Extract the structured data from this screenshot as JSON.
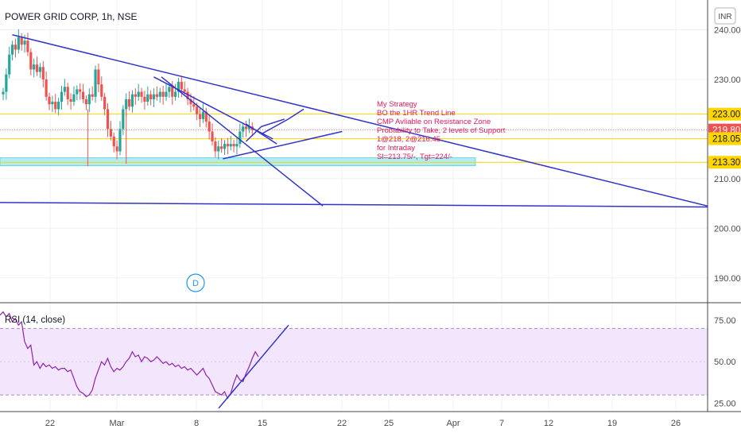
{
  "header": {
    "title": "POWER GRID CORP, 1h, NSE",
    "currency_badge": "INR"
  },
  "chart_data": [
    {
      "type": "candlestick",
      "title": "POWER GRID CORP, 1h, NSE",
      "y_ticks": [
        "240.00",
        "230.00",
        "220.00",
        "210.00",
        "200.00",
        "190.00"
      ],
      "x_ticks": [
        "22",
        "Mar",
        "8",
        "15",
        "22",
        "25",
        "Apr",
        "7",
        "12",
        "19",
        "26"
      ],
      "ylim": [
        185,
        246
      ],
      "price_tags": [
        {
          "label": "223.00",
          "value": 223.0,
          "style": "yellow"
        },
        {
          "label": "219.80",
          "value": 219.8,
          "style": "red"
        },
        {
          "label": "218.05",
          "value": 218.05,
          "style": "yellow"
        },
        {
          "label": "213.30",
          "value": 213.3,
          "style": "yellow"
        }
      ],
      "horizontal_levels": [
        223.0,
        218.05,
        213.3
      ],
      "support_zone": [
        212.6,
        214.2
      ],
      "last_price": 219.8,
      "series": [
        {
          "x": 0.0,
          "v": 227.5
        },
        {
          "x": 0.4,
          "v": 231.0
        },
        {
          "x": 0.8,
          "v": 235.0
        },
        {
          "x": 1.2,
          "v": 237.0
        },
        {
          "x": 1.6,
          "v": 236.0
        },
        {
          "x": 2.0,
          "v": 238.5
        },
        {
          "x": 2.4,
          "v": 237.0
        },
        {
          "x": 2.8,
          "v": 237.8
        },
        {
          "x": 3.2,
          "v": 235.5
        },
        {
          "x": 3.6,
          "v": 232.0
        },
        {
          "x": 4.0,
          "v": 233.0
        },
        {
          "x": 4.4,
          "v": 231.5
        },
        {
          "x": 4.8,
          "v": 232.5
        },
        {
          "x": 5.2,
          "v": 230.0
        },
        {
          "x": 5.6,
          "v": 226.5
        },
        {
          "x": 6.0,
          "v": 225.0
        },
        {
          "x": 6.4,
          "v": 225.5
        },
        {
          "x": 6.8,
          "v": 224.0
        },
        {
          "x": 7.2,
          "v": 225.5
        },
        {
          "x": 7.6,
          "v": 227.5
        },
        {
          "x": 8.0,
          "v": 228.5
        },
        {
          "x": 8.4,
          "v": 226.0
        },
        {
          "x": 8.8,
          "v": 225.5
        },
        {
          "x": 9.2,
          "v": 227.0
        },
        {
          "x": 9.6,
          "v": 228.0
        },
        {
          "x": 10.0,
          "v": 227.5
        },
        {
          "x": 10.4,
          "v": 226.0
        },
        {
          "x": 10.8,
          "v": 225.0
        },
        {
          "x": 11.2,
          "v": 227.0
        },
        {
          "x": 11.6,
          "v": 226.5
        },
        {
          "x": 12.0,
          "v": 232.0
        },
        {
          "x": 12.4,
          "v": 229.0
        },
        {
          "x": 12.8,
          "v": 226.5
        },
        {
          "x": 13.2,
          "v": 224.0
        },
        {
          "x": 13.6,
          "v": 220.0
        },
        {
          "x": 14.0,
          "v": 218.5
        },
        {
          "x": 14.4,
          "v": 216.5
        },
        {
          "x": 14.8,
          "v": 215.5
        },
        {
          "x": 15.2,
          "v": 220.0
        },
        {
          "x": 15.6,
          "v": 224.0
        },
        {
          "x": 16.0,
          "v": 226.0
        },
        {
          "x": 16.4,
          "v": 224.5
        },
        {
          "x": 16.8,
          "v": 227.0
        },
        {
          "x": 17.2,
          "v": 226.5
        },
        {
          "x": 17.6,
          "v": 227.5
        },
        {
          "x": 18.0,
          "v": 226.5
        },
        {
          "x": 18.4,
          "v": 225.5
        },
        {
          "x": 18.8,
          "v": 227.0
        },
        {
          "x": 19.2,
          "v": 226.0
        },
        {
          "x": 19.6,
          "v": 227.0
        },
        {
          "x": 20.0,
          "v": 226.5
        },
        {
          "x": 20.4,
          "v": 227.5
        },
        {
          "x": 20.8,
          "v": 226.5
        },
        {
          "x": 21.2,
          "v": 227.5
        },
        {
          "x": 21.6,
          "v": 228.5
        },
        {
          "x": 22.0,
          "v": 226.5
        },
        {
          "x": 22.4,
          "v": 227.5
        },
        {
          "x": 22.8,
          "v": 229.5
        },
        {
          "x": 23.2,
          "v": 228.0
        },
        {
          "x": 23.6,
          "v": 227.5
        },
        {
          "x": 24.0,
          "v": 226.0
        },
        {
          "x": 24.4,
          "v": 225.0
        },
        {
          "x": 24.8,
          "v": 224.5
        },
        {
          "x": 25.2,
          "v": 223.0
        },
        {
          "x": 25.6,
          "v": 222.0
        },
        {
          "x": 26.0,
          "v": 223.5
        },
        {
          "x": 26.4,
          "v": 221.5
        },
        {
          "x": 26.8,
          "v": 219.5
        },
        {
          "x": 27.2,
          "v": 217.5
        },
        {
          "x": 27.6,
          "v": 215.5
        },
        {
          "x": 28.0,
          "v": 216.5
        },
        {
          "x": 28.4,
          "v": 216.0
        },
        {
          "x": 28.8,
          "v": 217.0
        },
        {
          "x": 29.2,
          "v": 216.5
        },
        {
          "x": 29.6,
          "v": 217.0
        },
        {
          "x": 30.0,
          "v": 216.5
        },
        {
          "x": 30.4,
          "v": 217.0
        },
        {
          "x": 30.8,
          "v": 219.5
        },
        {
          "x": 31.2,
          "v": 220.5
        },
        {
          "x": 31.6,
          "v": 220.0
        },
        {
          "x": 32.0,
          "v": 220.5
        },
        {
          "x": 32.4,
          "v": 219.8
        }
      ],
      "drawings": [
        {
          "name": "main-descending-trendline",
          "points": [
            [
              1.6,
              239.0
            ],
            [
              92.0,
              204.5
            ]
          ]
        },
        {
          "name": "horizontal-support-line",
          "points": [
            [
              0.0,
              205.2
            ],
            [
              92.0,
              204.3
            ]
          ]
        },
        {
          "name": "steep-descending-line",
          "points": [
            [
              21.0,
              230.5
            ],
            [
              42.0,
              204.5
            ]
          ]
        },
        {
          "name": "rising-channel-lower-line",
          "points": [
            [
              29.0,
              214.0
            ],
            [
              44.5,
              219.5
            ]
          ]
        },
        {
          "name": "fan-line-a",
          "points": [
            [
              20.0,
              230.5
            ],
            [
              35.5,
              218.0
            ]
          ]
        },
        {
          "name": "fan-line-b",
          "points": [
            [
              32.0,
              221.0
            ],
            [
              36.0,
              217.0
            ]
          ]
        },
        {
          "name": "projected-path",
          "points": [
            [
              32.0,
              217.5
            ],
            [
              34.0,
              220.5
            ],
            [
              37.0,
              222.0
            ]
          ]
        },
        {
          "name": "projected-path-2",
          "points": [
            [
              34.0,
              219.0
            ],
            [
              37.5,
              222.0
            ],
            [
              39.5,
              224.0
            ]
          ]
        }
      ],
      "annotation_lines": [
        "My Strategy",
        "BO the 1HR Trend Line",
        "CMP Avliable on Resistance Zone",
        "Probability to Take, 2 levels of Support",
        "1@218, 2@216.45",
        "for Intraday",
        "Sl=213.75/-, Tgt=224/-"
      ],
      "dividend_marker": "D"
    },
    {
      "type": "line",
      "title": "RSI (14, close)",
      "y_ticks": [
        "75.00",
        "50.00",
        "25.00"
      ],
      "ylim": [
        20,
        85
      ],
      "band": [
        30,
        70
      ],
      "values": [
        78,
        80,
        77,
        79,
        74,
        76,
        72,
        74,
        62,
        58,
        60,
        48,
        50,
        46,
        49,
        47,
        48,
        46,
        47,
        45,
        46,
        46,
        44,
        45,
        40,
        35,
        32,
        31,
        29,
        30,
        33,
        40,
        45,
        50,
        48,
        52,
        47,
        44,
        46,
        45,
        47,
        50,
        52,
        56,
        53,
        54,
        50,
        53,
        52,
        50,
        51,
        53,
        51,
        49,
        50,
        48,
        49,
        47,
        48,
        46,
        47,
        45,
        46,
        44,
        42,
        44,
        46,
        42,
        40,
        36,
        32,
        31,
        30,
        32,
        28,
        31,
        37,
        42,
        39,
        38,
        43,
        47,
        52,
        56,
        53
      ],
      "trendline": [
        [
          0.0,
          22.0
        ],
        [
          1.0,
          72.0
        ]
      ]
    }
  ]
}
